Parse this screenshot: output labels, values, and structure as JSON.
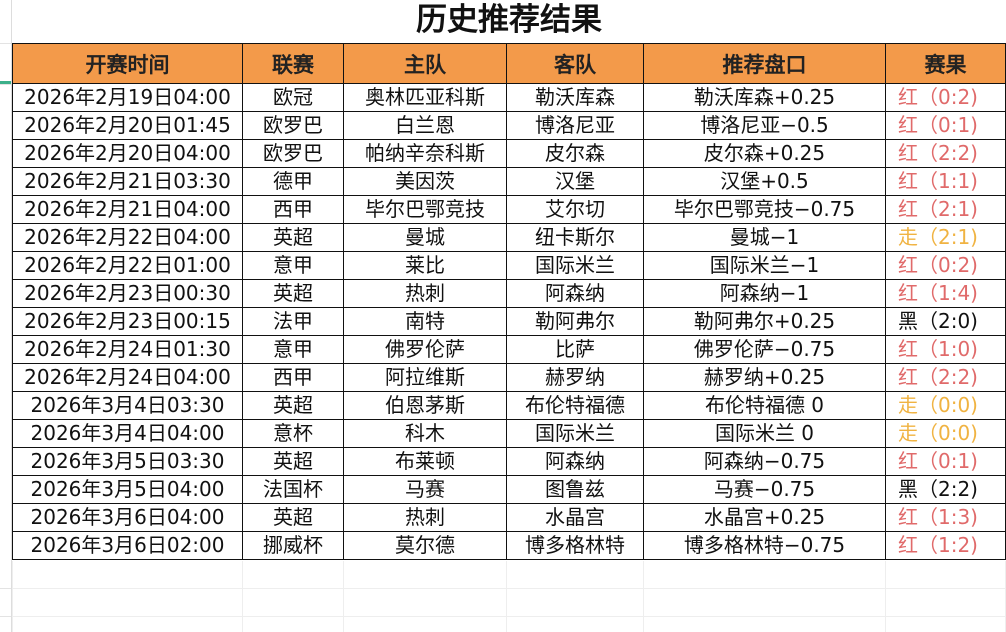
{
  "title": "历史推荐结果",
  "colors": {
    "header_bg": "#f39a4a",
    "red": "#e06a6a",
    "push": "#f0b342",
    "black": "#111111"
  },
  "columns": [
    "开赛时间",
    "联赛",
    "主队",
    "客队",
    "推荐盘口",
    "赛果"
  ],
  "rows": [
    {
      "time": "2026年2月19日04:00",
      "league": "欧冠",
      "home": "奥林匹亚科斯",
      "away": "勒沃库森",
      "pick": "勒沃库森+0.25",
      "result": "红（0:2)",
      "status": "red"
    },
    {
      "time": "2026年2月20日01:45",
      "league": "欧罗巴",
      "home": "白兰恩",
      "away": "博洛尼亚",
      "pick": "博洛尼亚−0.5",
      "result": "红（0:1)",
      "status": "red"
    },
    {
      "time": "2026年2月20日04:00",
      "league": "欧罗巴",
      "home": "帕纳辛奈科斯",
      "away": "皮尔森",
      "pick": "皮尔森+0.25",
      "result": "红（2:2)",
      "status": "red"
    },
    {
      "time": "2026年2月21日03:30",
      "league": "德甲",
      "home": "美因茨",
      "away": "汉堡",
      "pick": "汉堡+0.5",
      "result": "红（1:1)",
      "status": "red"
    },
    {
      "time": "2026年2月21日04:00",
      "league": "西甲",
      "home": "毕尔巴鄂竞技",
      "away": "艾尔切",
      "pick": "毕尔巴鄂竞技−0.75",
      "result": "红（2:1)",
      "status": "red"
    },
    {
      "time": "2026年2月22日04:00",
      "league": "英超",
      "home": "曼城",
      "away": "纽卡斯尔",
      "pick": "曼城−1",
      "result": "走（2:1)",
      "status": "push"
    },
    {
      "time": "2026年2月22日01:00",
      "league": "意甲",
      "home": "莱比",
      "away": "国际米兰",
      "pick": "国际米兰−1",
      "result": "红（0:2)",
      "status": "red"
    },
    {
      "time": "2026年2月23日00:30",
      "league": "英超",
      "home": "热刺",
      "away": "阿森纳",
      "pick": "阿森纳−1",
      "result": "红（1:4)",
      "status": "red"
    },
    {
      "time": "2026年2月23日00:15",
      "league": "法甲",
      "home": "南特",
      "away": "勒阿弗尔",
      "pick": "勒阿弗尔+0.25",
      "result": "黑（2:0)",
      "status": "black"
    },
    {
      "time": "2026年2月24日01:30",
      "league": "意甲",
      "home": "佛罗伦萨",
      "away": "比萨",
      "pick": "佛罗伦萨−0.75",
      "result": "红（1:0)",
      "status": "red"
    },
    {
      "time": "2026年2月24日04:00",
      "league": "西甲",
      "home": "阿拉维斯",
      "away": "赫罗纳",
      "pick": "赫罗纳+0.25",
      "result": "红（2:2)",
      "status": "red"
    },
    {
      "time": "2026年3月4日03:30",
      "league": "英超",
      "home": "伯恩茅斯",
      "away": "布伦特福德",
      "pick": "布伦特福德 0",
      "result": "走（0:0)",
      "status": "push"
    },
    {
      "time": "2026年3月4日04:00",
      "league": "意杯",
      "home": "科木",
      "away": "国际米兰",
      "pick": "国际米兰 0",
      "result": "走（0:0)",
      "status": "push"
    },
    {
      "time": "2026年3月5日03:30",
      "league": "英超",
      "home": "布莱顿",
      "away": "阿森纳",
      "pick": "阿森纳−0.75",
      "result": "红（0:1)",
      "status": "red"
    },
    {
      "time": "2026年3月5日04:00",
      "league": "法国杯",
      "home": "马赛",
      "away": "图鲁兹",
      "pick": "马赛−0.75",
      "result": "黑（2:2)",
      "status": "black"
    },
    {
      "time": "2026年3月6日04:00",
      "league": "英超",
      "home": "热刺",
      "away": "水晶宫",
      "pick": "水晶宫+0.25",
      "result": "红（1:3)",
      "status": "red"
    },
    {
      "time": "2026年3月6日02:00",
      "league": "挪威杯",
      "home": "莫尔德",
      "away": "博多格林特",
      "pick": "博多格林特−0.75",
      "result": "红（1:2)",
      "status": "red"
    }
  ]
}
